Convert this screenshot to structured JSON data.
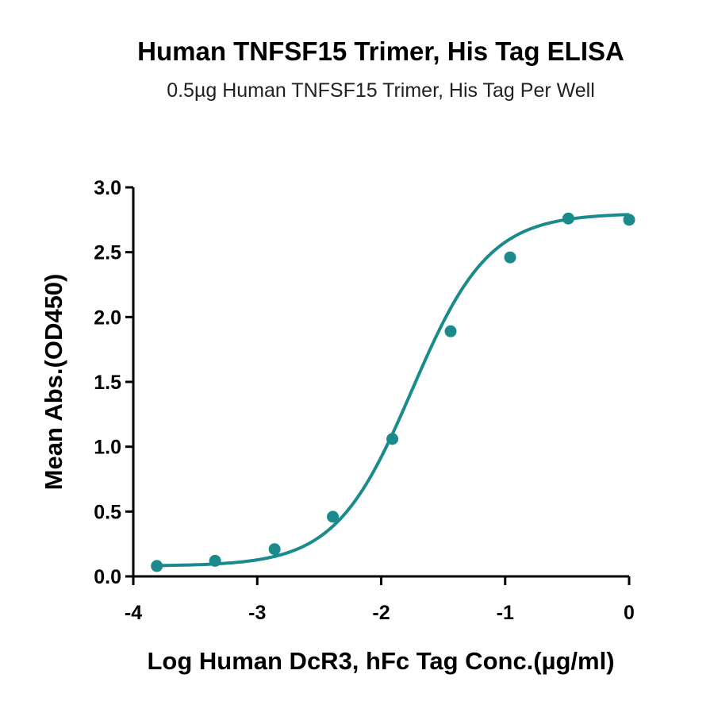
{
  "chart_data": {
    "type": "scatter",
    "title": "Human TNFSF15 Trimer, His Tag ELISA",
    "subtitle": "0.5µg Human TNFSF15 Trimer, His Tag Per Well",
    "xlabel": "Log Human DcR3, hFc Tag Conc.(µg/ml)",
    "ylabel": "Mean Abs.(OD450)",
    "xlim": [
      -4,
      0
    ],
    "ylim": [
      0,
      3.0
    ],
    "x_ticks": [
      -4,
      -3,
      -2,
      -1,
      0
    ],
    "x_tick_labels": [
      "-4",
      "-3",
      "-2",
      "-1",
      "0"
    ],
    "y_ticks": [
      0,
      0.5,
      1.0,
      1.5,
      2.0,
      2.5,
      3.0
    ],
    "y_tick_labels": [
      "0.0",
      "0.5",
      "1.0",
      "1.5",
      "2.0",
      "2.5",
      "3.0"
    ],
    "grid": false,
    "color": "#1a8a8c",
    "series": [
      {
        "x": [
          -3.81,
          -3.34,
          -2.86,
          -2.39,
          -1.91,
          -1.44,
          -0.96,
          -0.49,
          0.0
        ],
        "y": [
          0.08,
          0.12,
          0.21,
          0.46,
          1.06,
          1.89,
          2.46,
          2.76,
          2.75
        ]
      }
    ],
    "fit": {
      "model": "4PL",
      "bottom": 0.08,
      "top": 2.8,
      "log_ec50": -1.75,
      "hill_slope": 1.4
    }
  }
}
